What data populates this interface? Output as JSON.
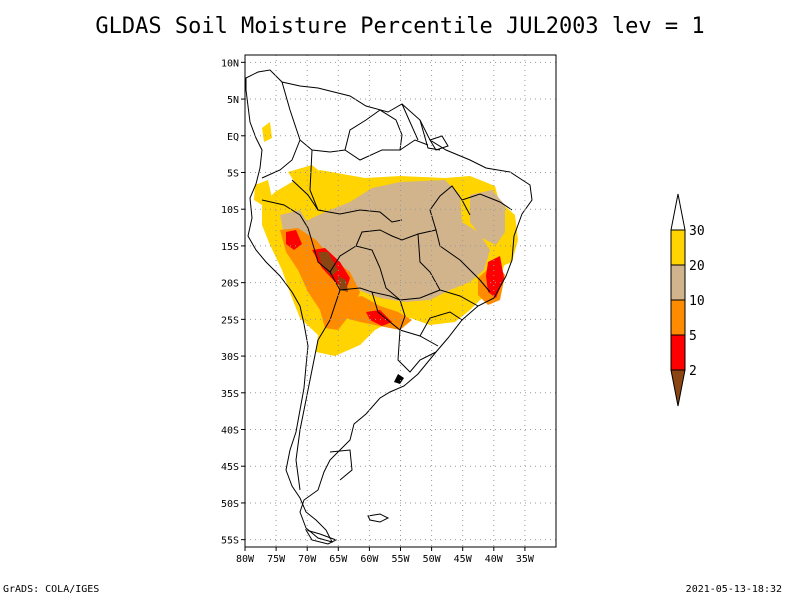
{
  "title": "GLDAS Soil Moisture Percentile JUL2003 lev = 1",
  "footer": {
    "left": "GrADS: COLA/IGES",
    "right": "2021-05-13-18:32"
  },
  "map": {
    "region": "South America",
    "lon_range": [
      -80,
      -30
    ],
    "lat_range": [
      -56,
      11
    ],
    "grid": true,
    "lat_ticks": [
      {
        "value": 10,
        "label": "10N"
      },
      {
        "value": 5,
        "label": "5N"
      },
      {
        "value": 0,
        "label": "EQ"
      },
      {
        "value": -5,
        "label": "5S"
      },
      {
        "value": -10,
        "label": "10S"
      },
      {
        "value": -15,
        "label": "15S"
      },
      {
        "value": -20,
        "label": "20S"
      },
      {
        "value": -25,
        "label": "25S"
      },
      {
        "value": -30,
        "label": "30S"
      },
      {
        "value": -35,
        "label": "35S"
      },
      {
        "value": -40,
        "label": "40S"
      },
      {
        "value": -45,
        "label": "45S"
      },
      {
        "value": -50,
        "label": "50S"
      },
      {
        "value": -55,
        "label": "55S"
      }
    ],
    "lon_ticks": [
      {
        "value": -80,
        "label": "80W"
      },
      {
        "value": -75,
        "label": "75W"
      },
      {
        "value": -70,
        "label": "70W"
      },
      {
        "value": -65,
        "label": "65W"
      },
      {
        "value": -60,
        "label": "60W"
      },
      {
        "value": -55,
        "label": "55W"
      },
      {
        "value": -50,
        "label": "50W"
      },
      {
        "value": -45,
        "label": "45W"
      },
      {
        "value": -40,
        "label": "40W"
      },
      {
        "value": -35,
        "label": "35W"
      }
    ]
  },
  "colorbar": {
    "levels": [
      {
        "label": "30"
      },
      {
        "label": "20"
      },
      {
        "label": "10"
      },
      {
        "label": "5"
      },
      {
        "label": "2"
      }
    ],
    "colors": {
      "above_30": "#ffffff",
      "20_30": "#ffd400",
      "10_20": "#d2b48c",
      "5_10": "#ff8c00",
      "2_5": "#ff0000",
      "below_2": "#8b4513"
    }
  }
}
